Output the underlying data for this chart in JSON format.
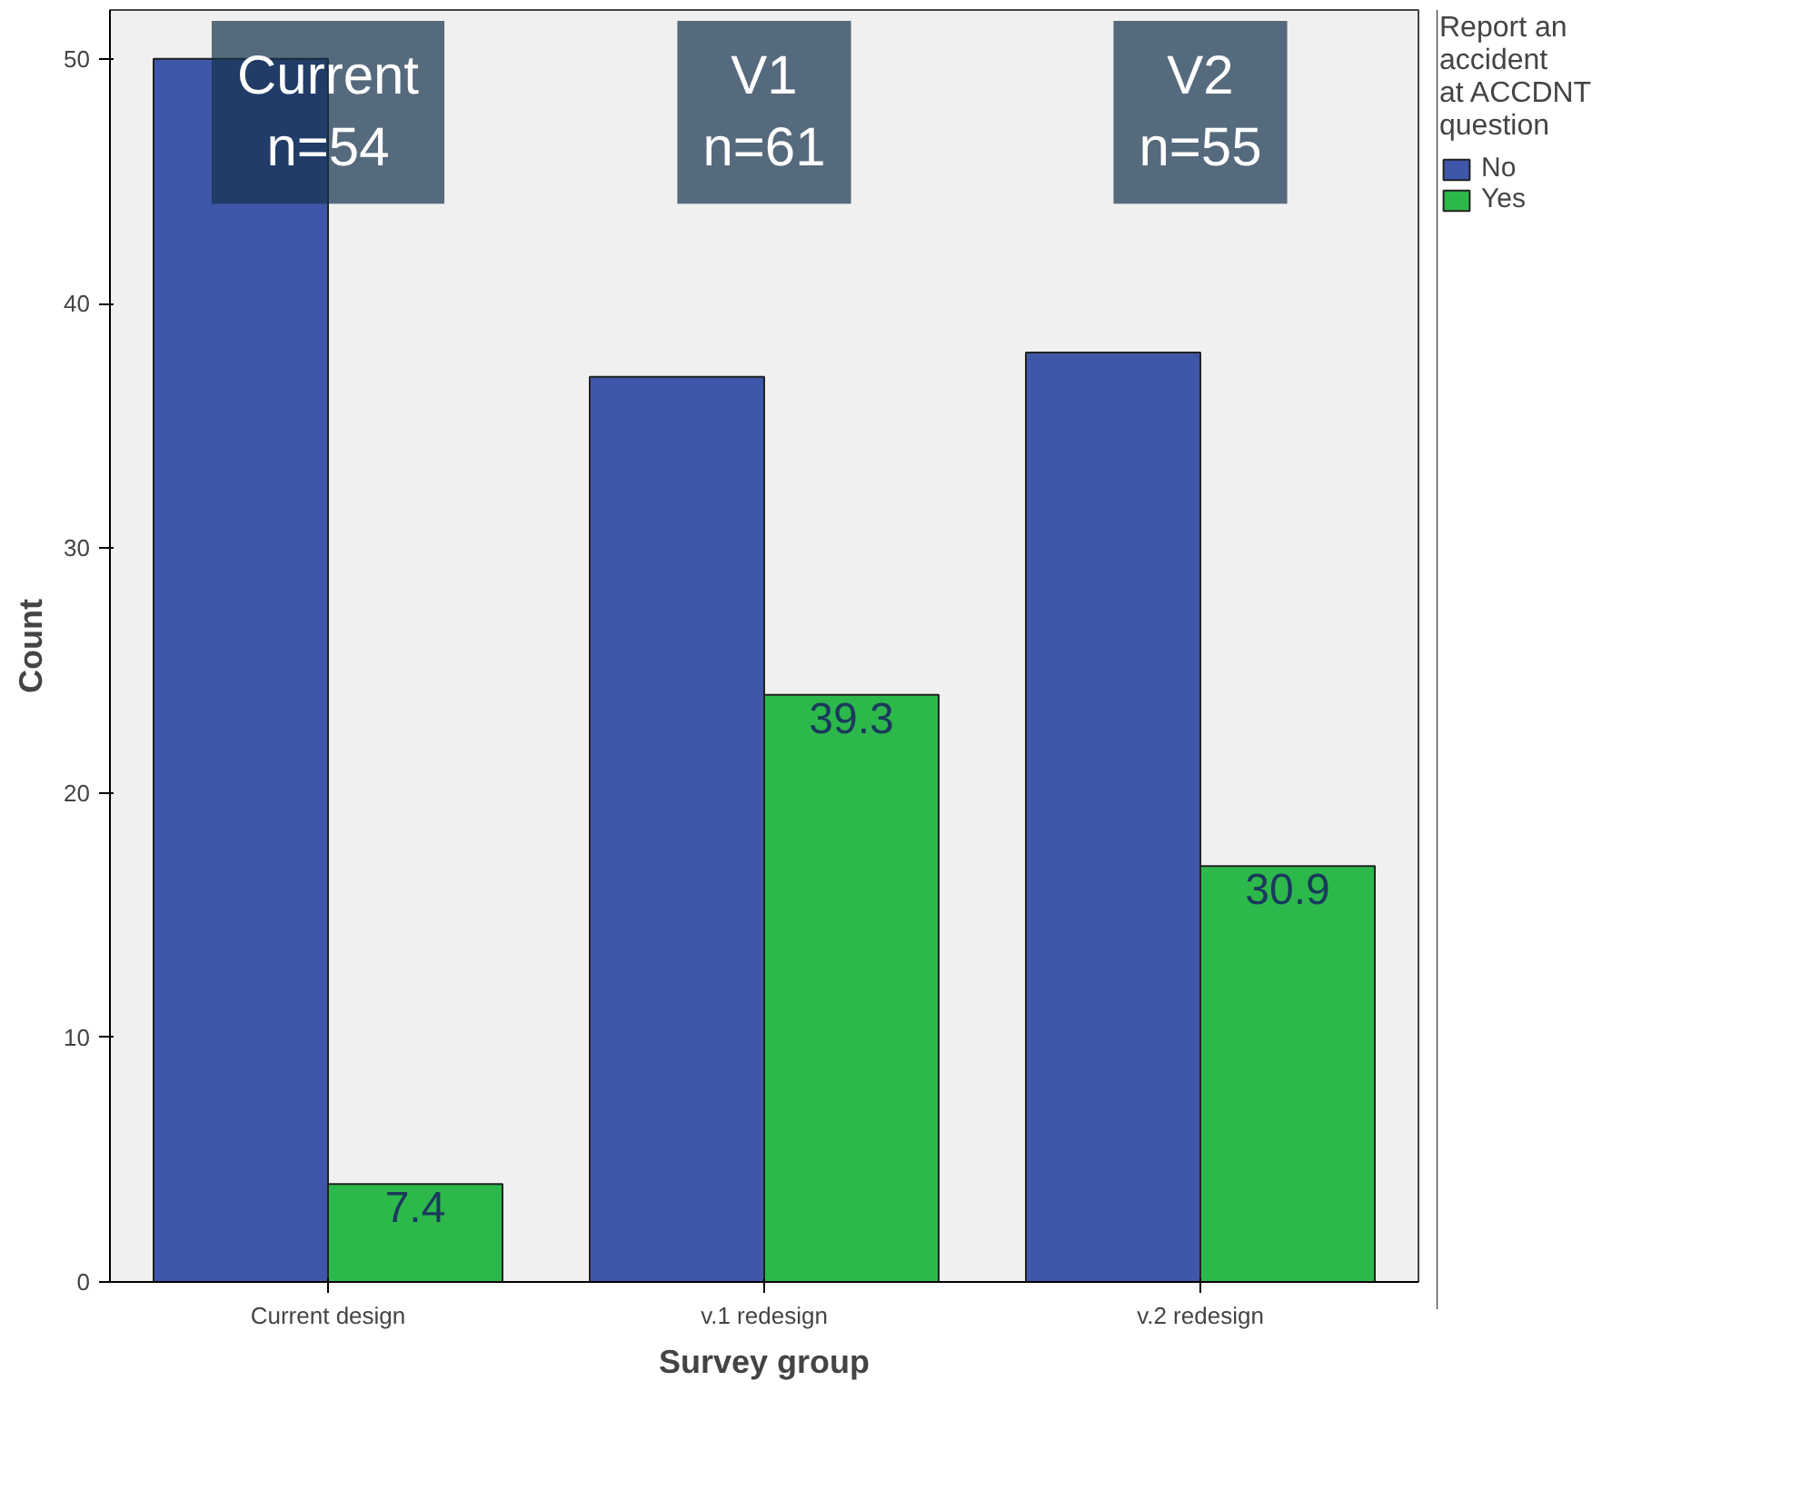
{
  "chart_data": {
    "type": "bar",
    "xlabel": "Survey group",
    "ylabel": "Count",
    "legend_title": "Report an accident at ACCDNT question",
    "categories": [
      "Current design",
      "v.1 redesign",
      "v.2 redesign"
    ],
    "series": [
      {
        "name": "No",
        "color": "#3f57a8",
        "values": [
          50,
          37,
          38
        ]
      },
      {
        "name": "Yes",
        "color": "#2db84b",
        "values": [
          4,
          24,
          17
        ]
      }
    ],
    "ylim": [
      0,
      52
    ],
    "yticks": [
      0,
      10,
      20,
      30,
      40,
      50
    ],
    "grid": false,
    "legend": "right",
    "annotations": [
      "Current\nn=54",
      "V1\nn=61",
      "V2\nn=55",
      {
        "text": "7.4",
        "x": "Current design",
        "y": 4
      },
      {
        "text": "39.3",
        "x": "v.1 redesign",
        "y": 24
      },
      {
        "text": "30.9",
        "x": "v.2 redesign",
        "y": 17
      }
    ]
  }
}
